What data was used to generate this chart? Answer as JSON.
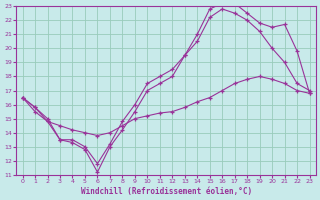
{
  "xlabel": "Windchill (Refroidissement éolien,°C)",
  "xlim": [
    -0.5,
    23.5
  ],
  "ylim": [
    11,
    23
  ],
  "xticks": [
    0,
    1,
    2,
    3,
    4,
    5,
    6,
    7,
    8,
    9,
    10,
    11,
    12,
    13,
    14,
    15,
    16,
    17,
    18,
    19,
    20,
    21,
    22,
    23
  ],
  "yticks": [
    11,
    12,
    13,
    14,
    15,
    16,
    17,
    18,
    19,
    20,
    21,
    22,
    23
  ],
  "bg_color": "#c8eaea",
  "line_color": "#993399",
  "grid_color": "#99ccbb",
  "lines": [
    {
      "x": [
        0,
        1,
        2,
        3,
        4,
        5,
        6,
        7,
        8,
        9,
        10,
        11,
        12,
        13,
        14,
        15,
        16,
        17,
        18,
        19,
        20,
        21,
        22,
        23
      ],
      "y": [
        16.5,
        15.8,
        15.0,
        13.5,
        13.3,
        12.8,
        11.2,
        13.0,
        14.2,
        15.5,
        17.0,
        17.5,
        18.0,
        19.5,
        21.0,
        22.8,
        23.2,
        23.2,
        22.5,
        21.8,
        21.5,
        21.7,
        19.8,
        16.8
      ]
    },
    {
      "x": [
        0,
        1,
        2,
        3,
        4,
        5,
        6,
        7,
        8,
        9,
        10,
        11,
        12,
        13,
        14,
        15,
        16,
        17,
        18,
        19,
        20,
        21,
        22,
        23
      ],
      "y": [
        16.5,
        15.5,
        14.8,
        13.5,
        13.5,
        13.0,
        11.8,
        13.2,
        14.8,
        16.0,
        17.5,
        18.0,
        18.5,
        19.5,
        20.5,
        22.2,
        22.8,
        22.5,
        22.0,
        21.2,
        20.0,
        19.0,
        17.5,
        17.0
      ]
    },
    {
      "x": [
        0,
        1,
        2,
        3,
        4,
        5,
        6,
        7,
        8,
        9,
        10,
        11,
        12,
        13,
        14,
        15,
        16,
        17,
        18,
        19,
        20,
        21,
        22,
        23
      ],
      "y": [
        16.5,
        15.8,
        14.8,
        14.5,
        14.2,
        14.0,
        13.8,
        14.0,
        14.5,
        15.0,
        15.2,
        15.4,
        15.5,
        15.8,
        16.2,
        16.5,
        17.0,
        17.5,
        17.8,
        18.0,
        17.8,
        17.5,
        17.0,
        16.8
      ]
    }
  ]
}
